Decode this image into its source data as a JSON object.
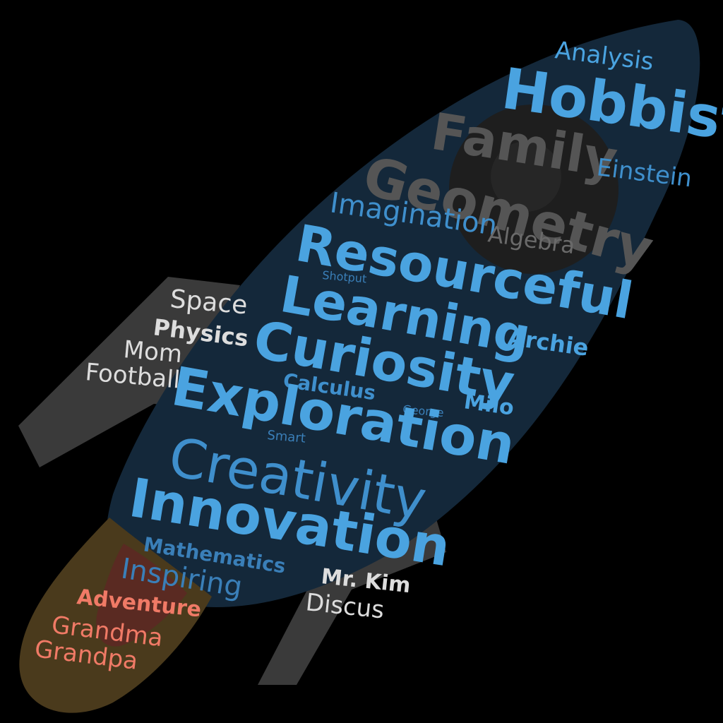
{
  "words": [
    {
      "id": "analysis",
      "text": "Analysis"
    },
    {
      "id": "hobbist",
      "text": "Hobbist"
    },
    {
      "id": "family",
      "text": "Family"
    },
    {
      "id": "einstein",
      "text": "Einstein"
    },
    {
      "id": "geometry",
      "text": "Geometry"
    },
    {
      "id": "imagination",
      "text": "Imagination"
    },
    {
      "id": "algebra",
      "text": "Algebra"
    },
    {
      "id": "resourceful",
      "text": "Resourceful"
    },
    {
      "id": "shotput",
      "text": "Shotput"
    },
    {
      "id": "learning",
      "text": "Learning"
    },
    {
      "id": "archie",
      "text": "Archie"
    },
    {
      "id": "curiosity",
      "text": "Curiosity"
    },
    {
      "id": "space",
      "text": "Space"
    },
    {
      "id": "physics",
      "text": "Physics"
    },
    {
      "id": "mom",
      "text": "Mom"
    },
    {
      "id": "football",
      "text": "Football"
    },
    {
      "id": "calculus",
      "text": "Calculus"
    },
    {
      "id": "milo",
      "text": "Milo"
    },
    {
      "id": "george",
      "text": "George"
    },
    {
      "id": "exploration",
      "text": "Exploration"
    },
    {
      "id": "smart",
      "text": "Smart"
    },
    {
      "id": "creativity",
      "text": "Creativity"
    },
    {
      "id": "innovation",
      "text": "Innovation"
    },
    {
      "id": "mathematics",
      "text": "Mathematics"
    },
    {
      "id": "inspiring",
      "text": "Inspiring"
    },
    {
      "id": "mr_kim",
      "text": "Mr. Kim"
    },
    {
      "id": "discus",
      "text": "Discus"
    },
    {
      "id": "adventure",
      "text": "Adventure"
    },
    {
      "id": "grandma",
      "text": "Grandma"
    },
    {
      "id": "grandpa",
      "text": "Grandpa"
    }
  ],
  "colors": {
    "background": "#000000",
    "rocket_body": "#14283a",
    "rocket_fins": "#3a3a3a",
    "porthole": "#1e1e1e",
    "flame": "#4a3a1c",
    "word_blue": "#4aa3e0",
    "word_gray": "#555555",
    "word_white": "#dddddd",
    "word_salmon": "#f07a66"
  }
}
